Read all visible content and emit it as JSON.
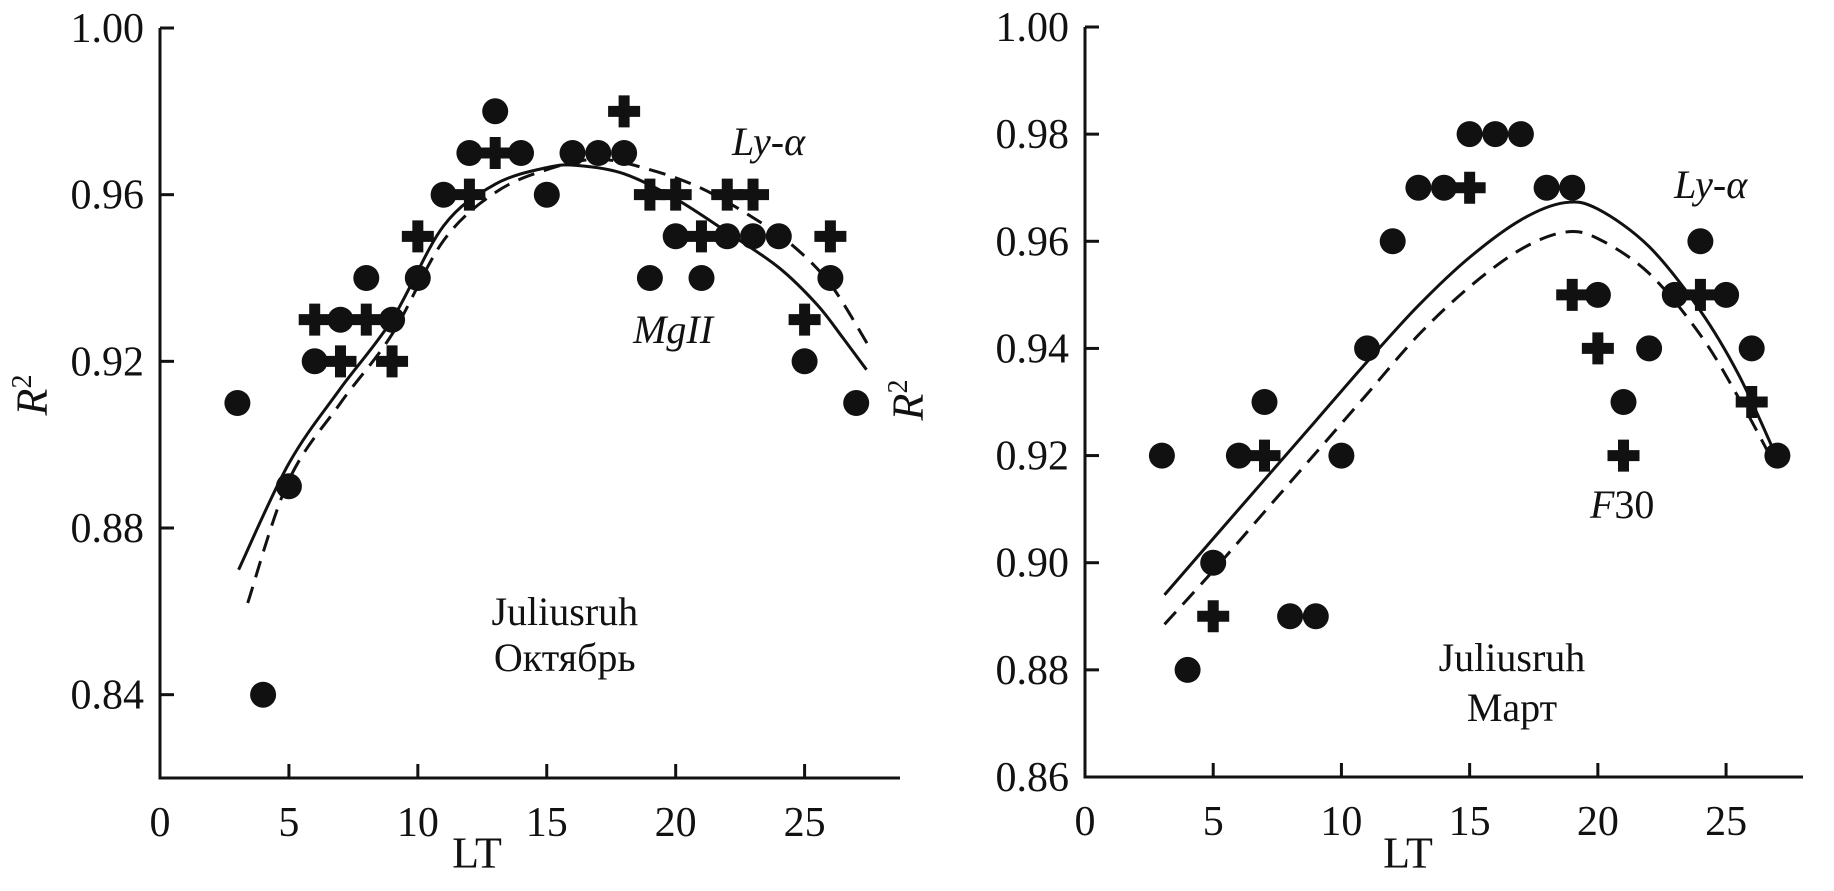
{
  "chart_data": [
    {
      "panel": "left",
      "type": "scatter",
      "xlabel": "LT",
      "ylabel_base": "R",
      "ylabel_sup": "2",
      "xlim": [
        0,
        28.7
      ],
      "ylim": [
        0.82,
        1.0
      ],
      "x_ticks": [
        "0",
        "5",
        "10",
        "15",
        "20",
        "25"
      ],
      "x_tick_values": [
        0,
        5,
        10,
        15,
        20,
        25
      ],
      "y_ticks": [
        "1.00",
        "0.96",
        "0.92",
        "0.88",
        "0.84"
      ],
      "y_tick_values": [
        1.0,
        0.96,
        0.92,
        0.88,
        0.84
      ],
      "grid": false,
      "series": [
        {
          "name": "dots",
          "marker": "circle",
          "points": [
            [
              3,
              0.91
            ],
            [
              4,
              0.84
            ],
            [
              5,
              0.89
            ],
            [
              6,
              0.92
            ],
            [
              7,
              0.93
            ],
            [
              8,
              0.94
            ],
            [
              9,
              0.93
            ],
            [
              10,
              0.94
            ],
            [
              11,
              0.96
            ],
            [
              12,
              0.97
            ],
            [
              13,
              0.98
            ],
            [
              14,
              0.97
            ],
            [
              15,
              0.96
            ],
            [
              16,
              0.97
            ],
            [
              17,
              0.97
            ],
            [
              18,
              0.97
            ],
            [
              19,
              0.94
            ],
            [
              20,
              0.95
            ],
            [
              21,
              0.94
            ],
            [
              22,
              0.95
            ],
            [
              23,
              0.95
            ],
            [
              24,
              0.95
            ],
            [
              25,
              0.92
            ],
            [
              26,
              0.94
            ],
            [
              27,
              0.91
            ]
          ]
        },
        {
          "name": "crosses",
          "marker": "plus",
          "points": [
            [
              6,
              0.93
            ],
            [
              7,
              0.92
            ],
            [
              8,
              0.93
            ],
            [
              9,
              0.92
            ],
            [
              10,
              0.95
            ],
            [
              12,
              0.96
            ],
            [
              13,
              0.97
            ],
            [
              18,
              0.98
            ],
            [
              19,
              0.96
            ],
            [
              20,
              0.96
            ],
            [
              21,
              0.95
            ],
            [
              22,
              0.96
            ],
            [
              23,
              0.96
            ],
            [
              25,
              0.93
            ],
            [
              26,
              0.95
            ]
          ]
        }
      ],
      "curves": [
        {
          "style": "solid",
          "points": [
            [
              3.05,
              0.87
            ],
            [
              5,
              0.8955
            ],
            [
              7,
              0.9135
            ],
            [
              9,
              0.93
            ],
            [
              11,
              0.9525
            ],
            [
              13,
              0.9625
            ],
            [
              15,
              0.9665
            ],
            [
              16.2,
              0.967
            ],
            [
              18,
              0.965
            ],
            [
              20,
              0.959
            ],
            [
              22,
              0.951
            ],
            [
              24,
              0.9425
            ],
            [
              25.5,
              0.9335
            ],
            [
              26.5,
              0.9255
            ],
            [
              27.4,
              0.918
            ]
          ]
        },
        {
          "style": "dashed",
          "points": [
            [
              3.4,
              0.862
            ],
            [
              5,
              0.8915
            ],
            [
              7,
              0.91
            ],
            [
              9,
              0.9265
            ],
            [
              11,
              0.949
            ],
            [
              13,
              0.9605
            ],
            [
              15,
              0.966
            ],
            [
              17,
              0.9685
            ],
            [
              19,
              0.966
            ],
            [
              21,
              0.9615
            ],
            [
              23,
              0.9545
            ],
            [
              24.5,
              0.948
            ],
            [
              26,
              0.9385
            ],
            [
              27.5,
              0.9235
            ]
          ]
        }
      ],
      "texts": [
        {
          "label": "Juliusruh",
          "x": 15.7,
          "y": 0.8598,
          "italic": false
        },
        {
          "label": "Октябрь",
          "x": 15.7,
          "y": 0.8487,
          "italic": false
        },
        {
          "label": "Ly-α",
          "x": 23.6,
          "y": 0.9726,
          "italic": true
        },
        {
          "label": "MgII",
          "x": 19.9,
          "y": 0.9276,
          "italic": true
        }
      ]
    },
    {
      "panel": "right",
      "type": "scatter",
      "xlabel": "LT",
      "ylabel_base": "R",
      "ylabel_sup": "2",
      "xlim": [
        0,
        28.0
      ],
      "ylim": [
        0.86,
        1.0
      ],
      "x_ticks": [
        "0",
        "5",
        "10",
        "15",
        "20",
        "25"
      ],
      "x_tick_values": [
        0,
        5,
        10,
        15,
        20,
        25
      ],
      "y_ticks": [
        "1.00",
        "0.98",
        "0.96",
        "0.94",
        "0.92",
        "0.90",
        "0.88",
        "0.86"
      ],
      "y_tick_values": [
        1.0,
        0.98,
        0.96,
        0.94,
        0.92,
        0.9,
        0.88,
        0.86
      ],
      "grid": false,
      "series": [
        {
          "name": "dots",
          "marker": "circle",
          "points": [
            [
              3,
              0.92
            ],
            [
              4,
              0.88
            ],
            [
              5,
              0.9
            ],
            [
              6,
              0.92
            ],
            [
              7,
              0.93
            ],
            [
              8,
              0.89
            ],
            [
              9,
              0.89
            ],
            [
              10,
              0.92
            ],
            [
              11,
              0.94
            ],
            [
              12,
              0.96
            ],
            [
              13,
              0.97
            ],
            [
              14,
              0.97
            ],
            [
              15,
              0.98
            ],
            [
              16,
              0.98
            ],
            [
              17,
              0.98
            ],
            [
              18,
              0.97
            ],
            [
              19,
              0.97
            ],
            [
              20,
              0.95
            ],
            [
              21,
              0.93
            ],
            [
              22,
              0.94
            ],
            [
              23,
              0.95
            ],
            [
              24,
              0.96
            ],
            [
              25,
              0.95
            ],
            [
              26,
              0.94
            ],
            [
              27,
              0.92
            ]
          ]
        },
        {
          "name": "crosses",
          "marker": "plus",
          "points": [
            [
              5,
              0.89
            ],
            [
              7,
              0.92
            ],
            [
              15,
              0.97
            ],
            [
              19,
              0.95
            ],
            [
              20,
              0.94
            ],
            [
              21,
              0.92
            ],
            [
              24,
              0.95
            ],
            [
              26,
              0.93
            ]
          ]
        }
      ],
      "curves": [
        {
          "style": "solid",
          "points": [
            [
              3.1,
              0.894
            ],
            [
              5,
              0.9045
            ],
            [
              7,
              0.9155
            ],
            [
              9,
              0.9265
            ],
            [
              11,
              0.9375
            ],
            [
              13,
              0.948
            ],
            [
              15,
              0.957
            ],
            [
              17,
              0.964
            ],
            [
              18.7,
              0.9672
            ],
            [
              20,
              0.966
            ],
            [
              22,
              0.959
            ],
            [
              24,
              0.947
            ],
            [
              25.5,
              0.935
            ],
            [
              26.9,
              0.9205
            ]
          ]
        },
        {
          "style": "dashed",
          "points": [
            [
              3.1,
              0.8885
            ],
            [
              5,
              0.8985
            ],
            [
              7,
              0.9095
            ],
            [
              9,
              0.9205
            ],
            [
              11,
              0.9315
            ],
            [
              13,
              0.9425
            ],
            [
              15,
              0.9515
            ],
            [
              17,
              0.9585
            ],
            [
              18.7,
              0.9617
            ],
            [
              20,
              0.9605
            ],
            [
              22,
              0.954
            ],
            [
              24,
              0.9425
            ],
            [
              25.5,
              0.9307
            ],
            [
              26.8,
              0.9192
            ]
          ]
        }
      ],
      "texts": [
        {
          "label": "Juliusruh",
          "x": 16.65,
          "y": 0.8822,
          "italic": false
        },
        {
          "label": "Март",
          "x": 16.65,
          "y": 0.8729,
          "italic": false
        },
        {
          "label": "Ly-α",
          "x": 24.4,
          "y": 0.9705,
          "italic": true
        },
        {
          "label": "F30",
          "x": 20.95,
          "y": 0.9108,
          "italic": true,
          "parts": [
            {
              "t": "F",
              "italic": true
            },
            {
              "t": "30",
              "italic": false
            }
          ]
        }
      ]
    }
  ]
}
